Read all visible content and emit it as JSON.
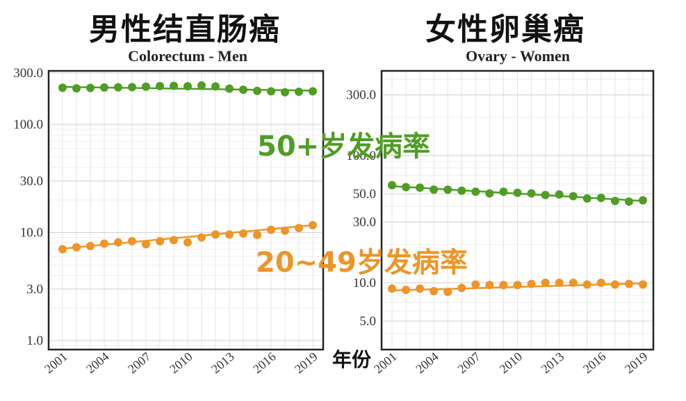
{
  "panel_titles": {
    "left": "男性结直肠癌",
    "right": "女性卵巢癌"
  },
  "overlay_labels": {
    "age_50_plus": "50+岁发病率",
    "age_20_49": "20~49岁发病率",
    "x_axis": "年份"
  },
  "colors": {
    "age_50_plus": "#4f9d24",
    "age_20_49": "#ec9528"
  },
  "chart_data": [
    {
      "type": "line",
      "title": "Colorectum - Men",
      "xlabel": "年份",
      "ylabel": "",
      "y_scale": "log",
      "ylim": [
        1.0,
        300.0
      ],
      "y_ticks": [
        "1.0",
        "3.0",
        "10.0",
        "30.0",
        "100.0",
        "300.0"
      ],
      "x": [
        2001,
        2002,
        2003,
        2004,
        2005,
        2006,
        2007,
        2008,
        2009,
        2010,
        2011,
        2012,
        2013,
        2014,
        2015,
        2016,
        2017,
        2018,
        2019
      ],
      "x_tick_labels": [
        "2001",
        "2004",
        "2007",
        "2010",
        "2013",
        "2016",
        "2019"
      ],
      "grid": true,
      "series": [
        {
          "group": "age_50_plus",
          "values": [
            219,
            216,
            218,
            220,
            221,
            222,
            224,
            227,
            228,
            226,
            230,
            225,
            215,
            210,
            205,
            203,
            199,
            201,
            203
          ],
          "trend": [
            223,
            206
          ]
        },
        {
          "group": "age_20_49",
          "values": [
            7.0,
            7.3,
            7.5,
            7.9,
            8.1,
            8.3,
            7.8,
            8.3,
            8.5,
            8.1,
            9.0,
            9.6,
            9.6,
            9.8,
            9.5,
            10.6,
            10.4,
            11.0,
            11.7
          ],
          "trend": [
            7.1,
            11.7
          ]
        }
      ]
    },
    {
      "type": "line",
      "title": "Ovary - Women",
      "xlabel": "年份",
      "ylabel": "",
      "y_scale": "log",
      "ylim": [
        4.0,
        500.0
      ],
      "y_ticks": [
        "5.0",
        "10.0",
        "30.0",
        "50.0",
        "100.0",
        "300.0"
      ],
      "x": [
        2001,
        2002,
        2003,
        2004,
        2005,
        2006,
        2007,
        2008,
        2009,
        2010,
        2011,
        2012,
        2013,
        2014,
        2015,
        2016,
        2017,
        2018,
        2019
      ],
      "x_tick_labels": [
        "2001",
        "2004",
        "2007",
        "2010",
        "2013",
        "2016",
        "2019"
      ],
      "grid": true,
      "series": [
        {
          "group": "age_50_plus",
          "values": [
            58.5,
            56.5,
            56.0,
            54.0,
            54.0,
            53.0,
            52.0,
            50.5,
            52.0,
            51.0,
            50.5,
            49.0,
            49.5,
            48.0,
            46.0,
            46.5,
            44.0,
            43.5,
            44.5
          ],
          "trend": [
            57.5,
            44.0
          ]
        },
        {
          "group": "age_20_49",
          "values": [
            9.0,
            8.8,
            9.0,
            8.6,
            8.5,
            9.1,
            9.7,
            9.6,
            9.6,
            9.6,
            9.8,
            10.0,
            10.0,
            10.0,
            9.7,
            10.0,
            9.7,
            9.8,
            9.7
          ],
          "trend": [
            8.7,
            9.9
          ]
        }
      ]
    }
  ]
}
